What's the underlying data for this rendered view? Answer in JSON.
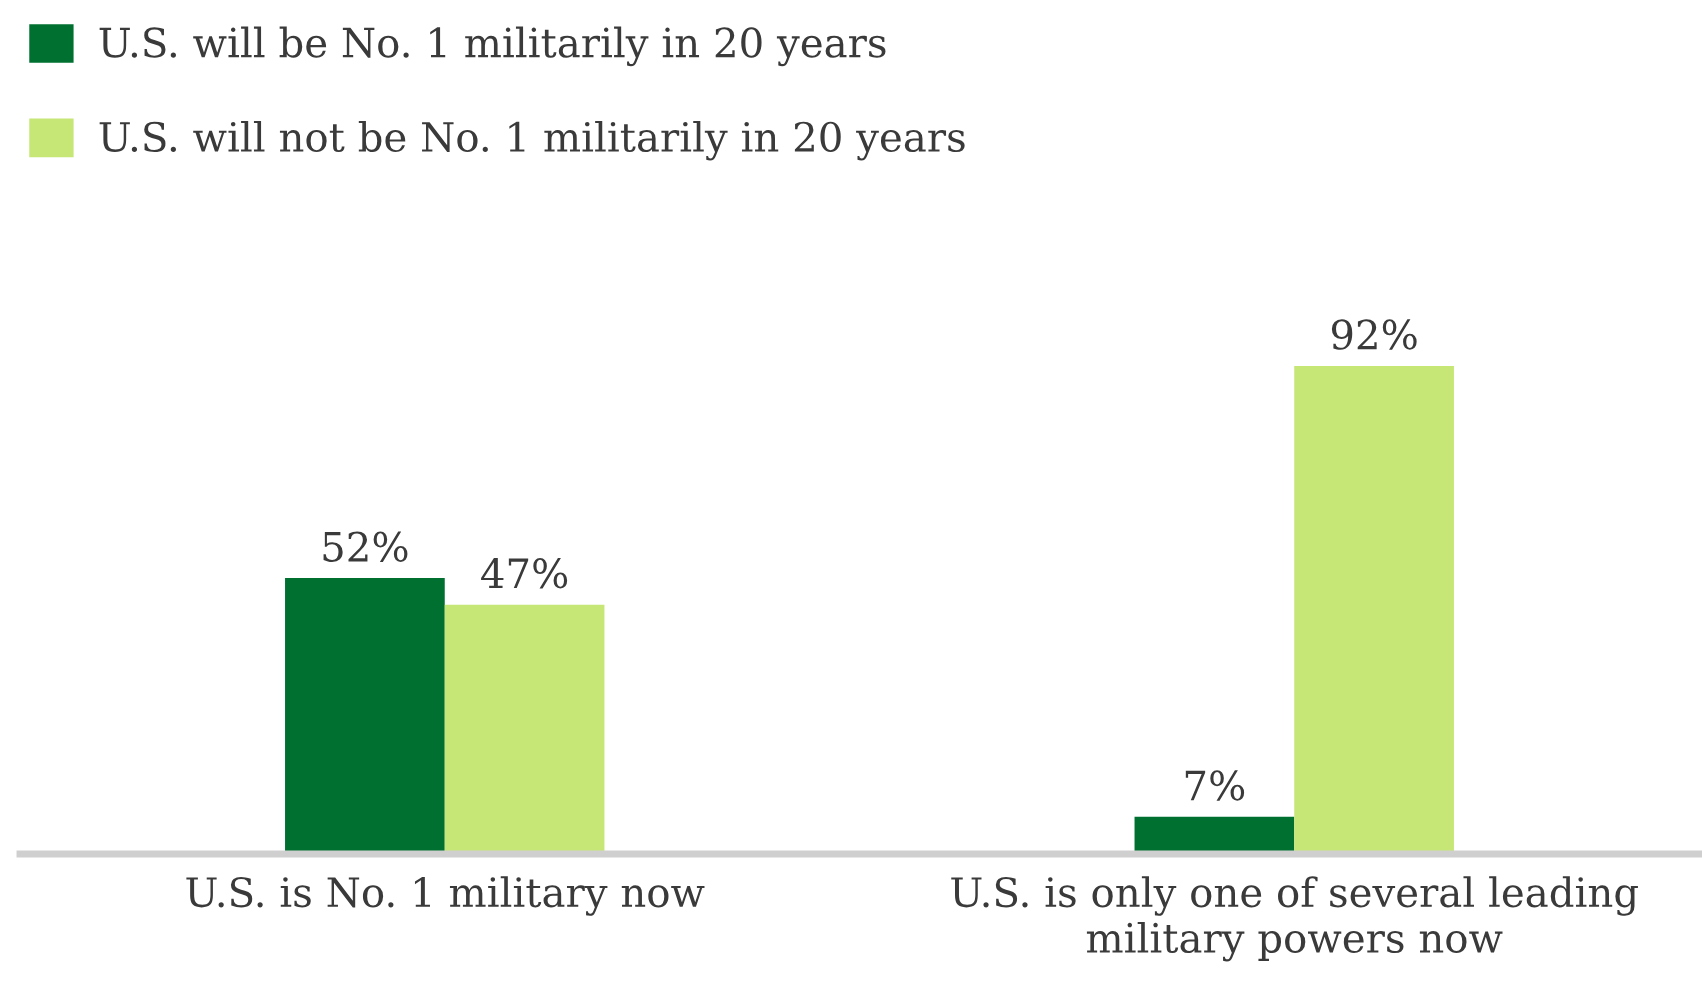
{
  "chart_data": {
    "type": "bar",
    "categories": [
      "U.S. is No. 1 military now",
      "U.S. is only one of several leading military powers now"
    ],
    "series": [
      {
        "name": "U.S. will be No. 1 militarily in 20 years",
        "color": "#007030",
        "values": [
          52,
          7
        ],
        "value_labels": [
          "52%",
          "7%"
        ]
      },
      {
        "name": "U.S. will not be No. 1 militarily in 20 years",
        "color": "#c6e676",
        "values": [
          47,
          92
        ],
        "value_labels": [
          "47%",
          "92%"
        ]
      }
    ],
    "legend": "top left",
    "grid": false
  }
}
